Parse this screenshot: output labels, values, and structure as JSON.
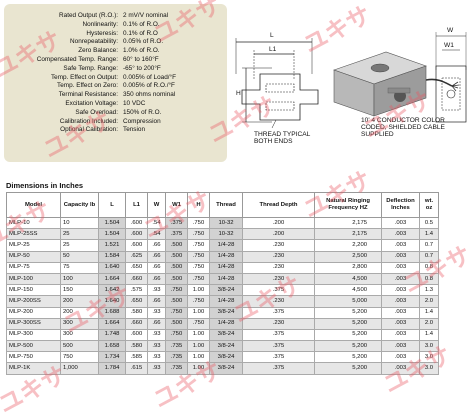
{
  "specs": [
    {
      "label": "Rated Output (R.O.):",
      "value": "2 mV/V nominal"
    },
    {
      "label": "Nonlinearity:",
      "value": "0.1% of R.O."
    },
    {
      "label": "Hysteresis:",
      "value": "0.1% of R.O"
    },
    {
      "label": "Nonrepeatability:",
      "value": "0.05% of R.O."
    },
    {
      "label": "Zero Balance:",
      "value": "1.0% of R.O."
    },
    {
      "label": "Compensated Temp. Range:",
      "value": "60° to 160°F"
    },
    {
      "label": "Safe Temp. Range:",
      "value": "-65° to 200°F"
    },
    {
      "label": "Temp. Effect on Output:",
      "value": "0.005% of Load/°F"
    },
    {
      "label": "Temp. Effect on Zero:",
      "value": "0.005% of R.O./°F"
    },
    {
      "label": "Terminal Resistance:",
      "value": "350 ohms nominal"
    },
    {
      "label": "Excitation Voltage:",
      "value": "10 VDC"
    },
    {
      "label": "Safe Overload:",
      "value": "150% of R.O."
    },
    {
      "label": "Calibration Included:",
      "value": "Compression"
    },
    {
      "label": "Optional Calibration:",
      "value": "Tension"
    }
  ],
  "drawing": {
    "dim_l": "L",
    "dim_l1": "L1",
    "dim_h": "H",
    "dim_w": "W",
    "dim_w1": "W1",
    "thread_note_line1": "THREAD TYPICAL",
    "thread_note_line2": "BOTH ENDS",
    "cable_note_line1": "10' 4 CONDUCTOR COLOR",
    "cable_note_line2": "CODED, SHIELDED CABLE",
    "cable_note_line3": "SUPPLIED"
  },
  "watermark_text": "ユキサ",
  "table": {
    "title": "Dimensions in Inches",
    "headers": [
      "Model",
      "Capacity lb",
      "L",
      "L1",
      "W",
      "W1",
      "H",
      "Thread",
      "Thread Depth",
      "Natural Ringing Frequency HZ",
      "Deflection Inches",
      "wt. oz"
    ],
    "rows": [
      [
        "MLP-10",
        "10",
        "1.504",
        ".600",
        ".54",
        ".375",
        ".750",
        "10-32",
        ".200",
        "2,175",
        ".003",
        "0.5"
      ],
      [
        "MLP-25SS",
        "25",
        "1.504",
        ".600",
        ".54",
        ".375",
        ".750",
        "10-32",
        ".200",
        "2,175",
        ".003",
        "1.4"
      ],
      [
        "MLP-25",
        "25",
        "1.521",
        ".600",
        ".66",
        ".500",
        ".750",
        "1/4-28",
        ".230",
        "2,200",
        ".003",
        "0.7"
      ],
      [
        "MLP-50",
        "50",
        "1.584",
        ".625",
        ".66",
        ".500",
        ".750",
        "1/4-28",
        ".230",
        "2,500",
        ".003",
        "0.7"
      ],
      [
        "MLP-75",
        "75",
        "1.640",
        ".650",
        ".66",
        ".500",
        ".750",
        "1/4-28",
        ".230",
        "2,800",
        ".003",
        "0.8"
      ],
      [
        "MLP-100",
        "100",
        "1.664",
        ".660",
        ".66",
        ".500",
        ".750",
        "1/4-28",
        ".230",
        "4,500",
        ".003",
        "0.8"
      ],
      [
        "MLP-150",
        "150",
        "1.642",
        ".575",
        ".93",
        ".750",
        "1.00",
        "3/8-24",
        ".375",
        "4,500",
        ".003",
        "1.3"
      ],
      [
        "MLP-200SS",
        "200",
        "1.640",
        ".650",
        ".66",
        ".500",
        ".750",
        "1/4-28",
        ".230",
        "5,000",
        ".003",
        "2.0"
      ],
      [
        "MLP-200",
        "200",
        "1.688",
        ".580",
        ".93",
        ".750",
        "1.00",
        "3/8-24",
        ".375",
        "5,200",
        ".003",
        "1.4"
      ],
      [
        "MLP-300SS",
        "300",
        "1.664",
        ".660",
        ".66",
        ".500",
        ".750",
        "1/4-28",
        ".230",
        "5,200",
        ".003",
        "2.0"
      ],
      [
        "MLP-300",
        "300",
        "1.748",
        ".600",
        ".93",
        ".750",
        "1.00",
        "3/8-24",
        ".375",
        "5,200",
        ".003",
        "1.4"
      ],
      [
        "MLP-500",
        "500",
        "1.658",
        ".580",
        ".93",
        ".735",
        "1.00",
        "3/8-24",
        ".375",
        "5,200",
        ".003",
        "3.0"
      ],
      [
        "MLP-750",
        "750",
        "1.734",
        ".585",
        ".93",
        ".735",
        "1.00",
        "3/8-24",
        ".375",
        "5,200",
        ".003",
        "3.0"
      ],
      [
        "MLP-1K",
        "1,000",
        "1.784",
        ".615",
        ".93",
        ".735",
        "1.00",
        "3/8-24",
        ".375",
        "5,200",
        ".003",
        "3.0"
      ]
    ]
  }
}
